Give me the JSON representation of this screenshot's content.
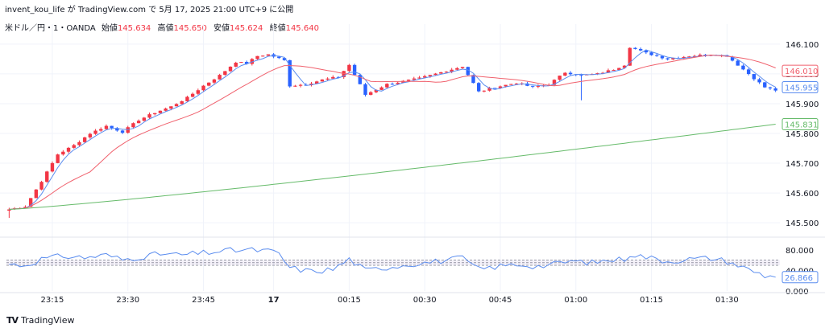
{
  "header": {
    "attribution": "invent_kou_life が TradingView.com で 5月 17, 2025 21:00 UTC+9 に公開"
  },
  "symbol_bar": {
    "name": "米ドル／円・1・OANDA",
    "open_label": "始値",
    "open_value": "145.634",
    "high_label": "高値",
    "high_value": "145.650",
    "low_label": "安値",
    "low_value": "145.624",
    "close_label": "終値",
    "close_value": "145.640"
  },
  "footer": {
    "brand": "TradingView"
  },
  "colors": {
    "up": "#f23645",
    "down": "#2962ff",
    "ma_fast": "#5b8def",
    "ma_mid": "#f0616d",
    "ma_slow": "#66bb6a",
    "rsi": "#5b8def",
    "grid": "#f0f3fa"
  },
  "chart_data": [
    {
      "type": "candlestick",
      "price_axis_ticks": [
        "146.100",
        "146.000",
        "145.900",
        "145.800",
        "145.700",
        "145.600",
        "145.500"
      ],
      "ylim": [
        145.46,
        146.14
      ],
      "x_labels": [
        "23:15",
        "23:30",
        "23:45",
        "17",
        "00:15",
        "00:30",
        "00:45",
        "01:00",
        "01:15",
        "01:30"
      ],
      "price_labels": [
        {
          "series": "ma_mid",
          "value": "146.010"
        },
        {
          "series": "ma_fast",
          "value": "145.955"
        },
        {
          "series": "ma_slow",
          "value": "145.831"
        }
      ],
      "keyframes": [
        [
          0,
          145.545
        ],
        [
          3,
          145.555
        ],
        [
          6,
          145.64
        ],
        [
          9,
          145.73
        ],
        [
          12,
          145.76
        ],
        [
          15,
          145.8
        ],
        [
          18,
          145.825
        ],
        [
          21,
          145.805
        ],
        [
          24,
          145.845
        ],
        [
          27,
          145.87
        ],
        [
          30,
          145.89
        ],
        [
          33,
          145.92
        ],
        [
          36,
          145.96
        ],
        [
          39,
          145.995
        ],
        [
          42,
          146.04
        ],
        [
          44,
          146.035
        ],
        [
          46,
          146.06
        ],
        [
          48,
          146.065
        ],
        [
          51,
          146.045
        ],
        [
          52,
          145.96
        ],
        [
          55,
          145.965
        ],
        [
          58,
          145.98
        ],
        [
          61,
          145.99
        ],
        [
          63,
          146.03
        ],
        [
          66,
          145.93
        ],
        [
          70,
          145.965
        ],
        [
          73,
          145.975
        ],
        [
          76,
          145.985
        ],
        [
          80,
          146.005
        ],
        [
          84,
          146.025
        ],
        [
          87,
          145.94
        ],
        [
          90,
          145.955
        ],
        [
          94,
          145.97
        ],
        [
          97,
          145.955
        ],
        [
          100,
          145.965
        ],
        [
          103,
          146.005
        ],
        [
          106,
          145.995
        ],
        [
          109,
          146.0
        ],
        [
          112,
          146.015
        ],
        [
          114,
          146.03
        ],
        [
          115,
          146.09
        ],
        [
          118,
          146.07
        ],
        [
          122,
          146.05
        ],
        [
          126,
          146.06
        ],
        [
          130,
          146.065
        ],
        [
          133,
          146.06
        ],
        [
          137,
          146.0
        ],
        [
          140,
          145.955
        ],
        [
          142,
          145.945
        ]
      ],
      "series": [
        {
          "name": "MA fast",
          "value_label": "145.955",
          "period": 4
        },
        {
          "name": "MA mid",
          "value_label": "146.010",
          "period": 16
        },
        {
          "name": "MA slow",
          "value_label": "145.831",
          "period": 120
        }
      ]
    },
    {
      "type": "line",
      "name": "RSI",
      "ticks": [
        "80.000",
        "40.000",
        "0.000"
      ],
      "ylim": [
        0,
        100
      ],
      "last_value": "26.866",
      "bands": [
        60,
        55,
        50
      ],
      "keyframes": [
        [
          0,
          52
        ],
        [
          3,
          50
        ],
        [
          6,
          62
        ],
        [
          10,
          68
        ],
        [
          14,
          65
        ],
        [
          18,
          70
        ],
        [
          21,
          61
        ],
        [
          24,
          66
        ],
        [
          28,
          72
        ],
        [
          32,
          70
        ],
        [
          36,
          74
        ],
        [
          40,
          78
        ],
        [
          44,
          80
        ],
        [
          48,
          78
        ],
        [
          50,
          72
        ],
        [
          52,
          45
        ],
        [
          56,
          38
        ],
        [
          60,
          42
        ],
        [
          63,
          62
        ],
        [
          66,
          40
        ],
        [
          70,
          46
        ],
        [
          74,
          52
        ],
        [
          78,
          56
        ],
        [
          81,
          60
        ],
        [
          84,
          64
        ],
        [
          87,
          42
        ],
        [
          90,
          47
        ],
        [
          94,
          52
        ],
        [
          98,
          48
        ],
        [
          101,
          52
        ],
        [
          104,
          58
        ],
        [
          108,
          55
        ],
        [
          111,
          60
        ],
        [
          114,
          62
        ],
        [
          115,
          72
        ],
        [
          118,
          66
        ],
        [
          122,
          58
        ],
        [
          126,
          62
        ],
        [
          130,
          64
        ],
        [
          133,
          58
        ],
        [
          137,
          42
        ],
        [
          140,
          30
        ],
        [
          142,
          27
        ]
      ]
    }
  ]
}
